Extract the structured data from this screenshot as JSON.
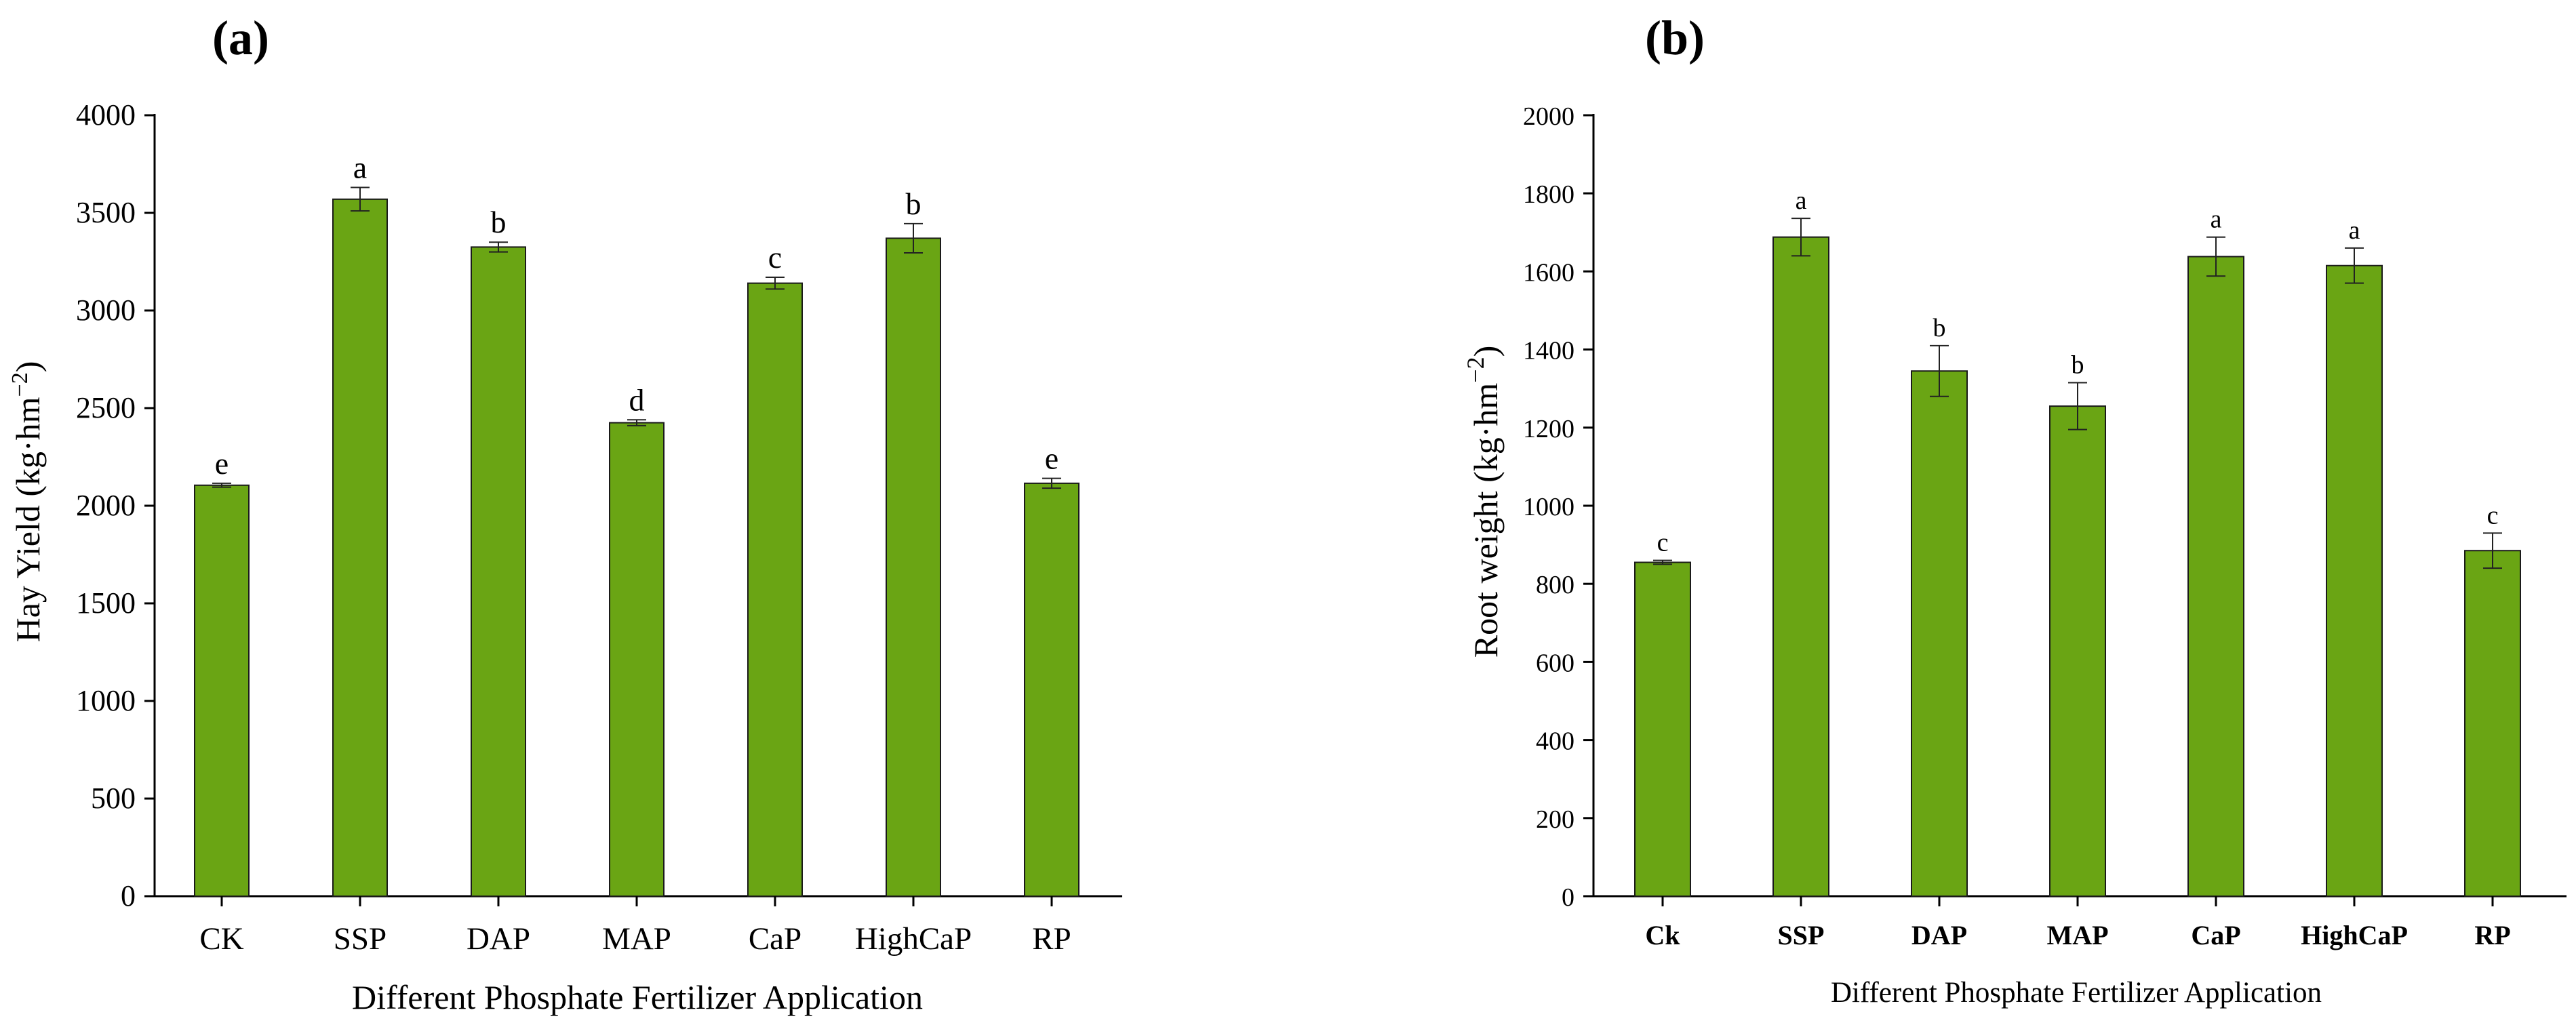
{
  "chart_data": [
    {
      "type": "bar",
      "panel": "(a)",
      "categories": [
        "CK",
        "SSP",
        "DAP",
        "MAP",
        "CaP",
        "HighCaP",
        "RP"
      ],
      "values": [
        2105,
        3570,
        3325,
        2425,
        3140,
        3370,
        2115
      ],
      "errors": [
        10,
        60,
        25,
        15,
        30,
        75,
        25
      ],
      "significance": [
        "e",
        "a",
        "b",
        "d",
        "c",
        "b",
        "e"
      ],
      "title": "",
      "xlabel": "Different Phosphate Fertilizer Application",
      "ylabel": "Hay Yield (kg·hm⁻²)",
      "ylabel_main": "Hay Yield (kg·hm",
      "ylabel_sup": "−2",
      "ylabel_end": ")",
      "ylim": [
        0,
        4000
      ],
      "yticks": [
        0,
        500,
        1000,
        1500,
        2000,
        2500,
        3000,
        3500,
        4000
      ],
      "grid": false,
      "bar_color": "#6aa514"
    },
    {
      "type": "bar",
      "panel": "(b)",
      "categories": [
        "Ck",
        "SSP",
        "DAP",
        "MAP",
        "CaP",
        "HighCaP",
        "RP"
      ],
      "values": [
        855,
        1688,
        1345,
        1255,
        1638,
        1615,
        885
      ],
      "errors": [
        5,
        48,
        65,
        60,
        50,
        45,
        45
      ],
      "significance": [
        "c",
        "a",
        "b",
        "b",
        "a",
        "a",
        "c"
      ],
      "title": "",
      "xlabel": "Different Phosphate Fertilizer Application",
      "ylabel": "Root weight (kg·hm⁻²)",
      "ylabel_main": "Root weight  (kg·hm",
      "ylabel_sup": "−2",
      "ylabel_end": ")",
      "ylim": [
        0,
        2000
      ],
      "yticks": [
        0,
        200,
        400,
        600,
        800,
        1000,
        1200,
        1400,
        1600,
        1800,
        2000
      ],
      "grid": false,
      "bar_color": "#6aa514"
    }
  ]
}
